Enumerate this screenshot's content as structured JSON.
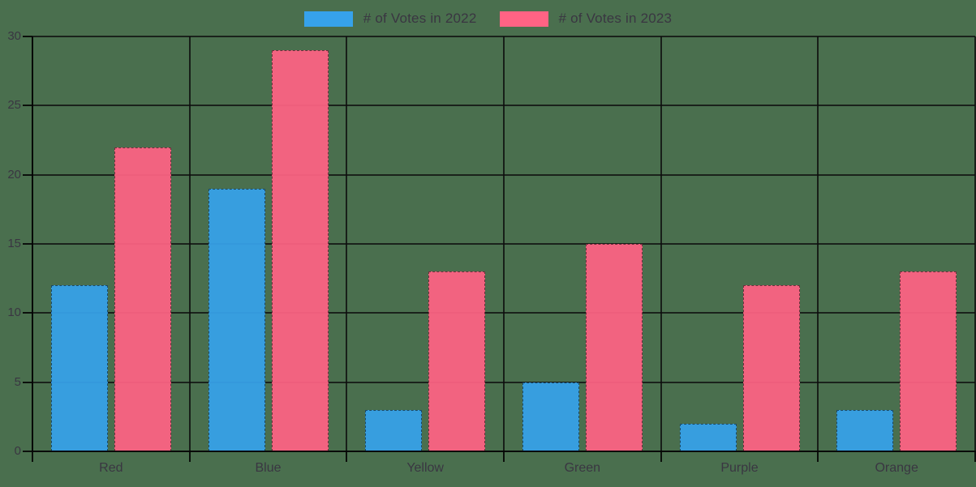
{
  "chart_data": {
    "type": "bar",
    "title": "",
    "categories": [
      "Red",
      "Blue",
      "Yellow",
      "Green",
      "Purple",
      "Orange"
    ],
    "series": [
      {
        "name": "# of Votes in 2022",
        "color": "#36A2EB",
        "values": [
          12,
          19,
          3,
          5,
          2,
          3
        ]
      },
      {
        "name": "# of Votes in 2023",
        "color": "#FF6384",
        "values": [
          22,
          29,
          13,
          15,
          12,
          13
        ]
      }
    ],
    "xlabel": "",
    "ylabel": "",
    "ylim": [
      0,
      30
    ],
    "yticks": [
      0,
      5,
      10,
      15,
      20,
      25,
      30
    ],
    "grid": true,
    "legend_position": "top",
    "colors": {
      "background": "#4a6f4e",
      "gridline": "#111111",
      "text": "#3a3642",
      "series_2022": "#36A2EB",
      "series_2023": "#FF6384"
    }
  }
}
